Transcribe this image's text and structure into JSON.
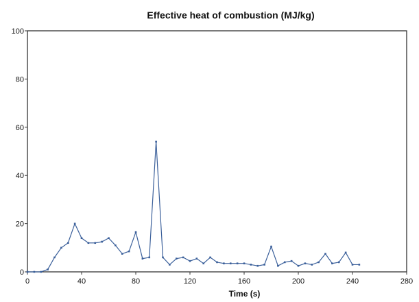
{
  "chart_data": {
    "type": "line",
    "title": "Effective heat of combustion (MJ/kg)",
    "xlabel": "Time (s)",
    "ylabel": "",
    "xlim": [
      0,
      280
    ],
    "ylim": [
      0,
      100
    ],
    "x_ticks": [
      "0",
      "40",
      "80",
      "120",
      "160",
      "200",
      "240",
      "280"
    ],
    "y_ticks": [
      "0",
      "20",
      "40",
      "60",
      "80",
      "100"
    ],
    "grid": false,
    "legend": "none",
    "series": [
      {
        "line_color": "#3a5f9a",
        "x": [
          0,
          5,
          10,
          15,
          20,
          25,
          30,
          35,
          40,
          45,
          50,
          55,
          60,
          65,
          70,
          75,
          80,
          85,
          90,
          95,
          100,
          105,
          110,
          115,
          120,
          125,
          130,
          135,
          140,
          145,
          150,
          155,
          160,
          165,
          170,
          175,
          180,
          185,
          190,
          195,
          200,
          205,
          210,
          215,
          220,
          225,
          230,
          235,
          240,
          245
        ],
        "values": [
          0,
          0,
          0,
          1,
          6,
          10,
          12,
          20,
          14,
          12,
          12,
          12.5,
          14,
          11,
          7.5,
          8.5,
          16.5,
          5.5,
          6,
          54,
          6,
          3,
          5.5,
          6,
          4.5,
          5.5,
          3.5,
          6,
          4,
          3.5,
          3.5,
          3.5,
          3.5,
          3,
          2.5,
          3,
          10.5,
          2.5,
          4,
          4.5,
          2.5,
          3.5,
          3,
          4,
          7.5,
          3.5,
          4,
          8,
          3,
          3
        ]
      }
    ]
  }
}
